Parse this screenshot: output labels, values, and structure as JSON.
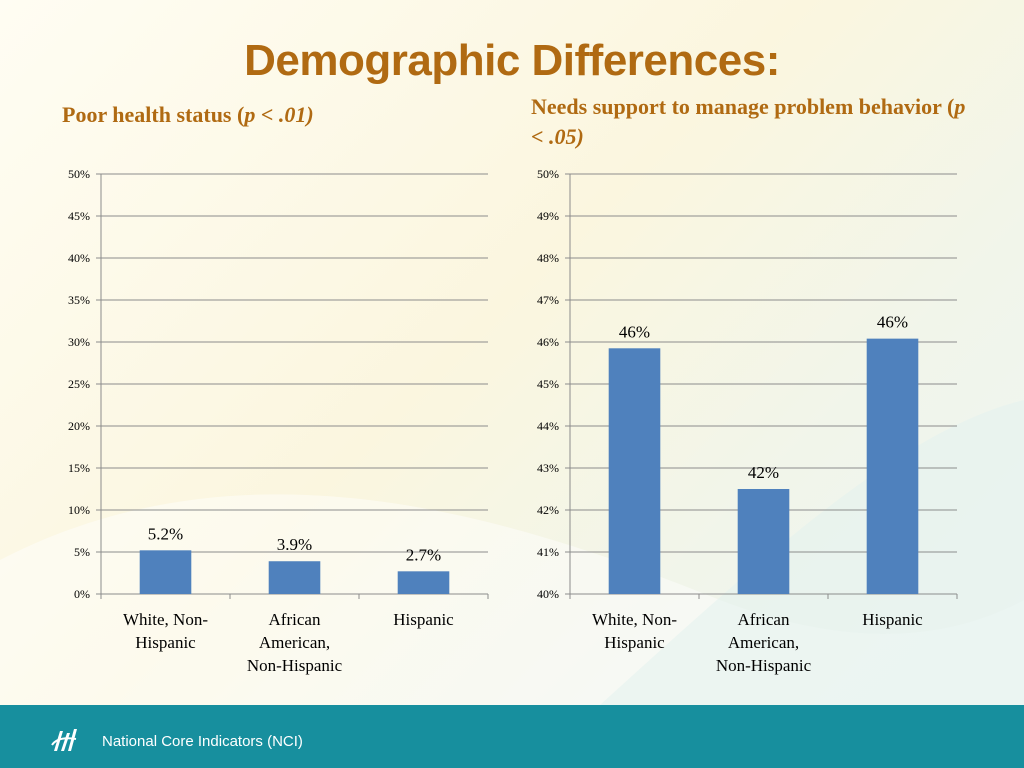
{
  "page": {
    "title": "Demographic Differences:",
    "footer_text": "National Core Indicators (NCI)",
    "colors": {
      "title": "#b06a12",
      "bar": "#4f81bd",
      "footer": "#178f9e"
    },
    "icons": [
      "nci-logo-icon"
    ]
  },
  "chart_data": [
    {
      "type": "bar",
      "title_main": "Poor health status (",
      "title_italic": "p < .01)",
      "categories": [
        [
          "White, Non-",
          "Hispanic"
        ],
        [
          "African",
          "American,",
          "Non-Hispanic"
        ],
        [
          "Hispanic"
        ]
      ],
      "values": [
        5.2,
        3.9,
        2.7
      ],
      "data_labels": [
        "5.2%",
        "3.9%",
        "2.7%"
      ],
      "ylim": [
        0,
        50
      ],
      "yticks": [
        "0%",
        "5%",
        "10%",
        "15%",
        "20%",
        "25%",
        "30%",
        "35%",
        "40%",
        "45%",
        "50%"
      ],
      "grid": true,
      "legend": "none"
    },
    {
      "type": "bar",
      "title_main": "Needs support to manage problem behavior (",
      "title_italic": "p < .05)",
      "categories": [
        [
          "White, Non-",
          "Hispanic"
        ],
        [
          "African",
          "American,",
          "Non-Hispanic"
        ],
        [
          "Hispanic"
        ]
      ],
      "values": [
        45.85,
        42.5,
        46.08
      ],
      "data_labels": [
        "46%",
        "42%",
        "46%"
      ],
      "ylim": [
        40,
        50
      ],
      "yticks": [
        "40%",
        "41%",
        "42%",
        "43%",
        "44%",
        "45%",
        "46%",
        "47%",
        "48%",
        "49%",
        "50%"
      ],
      "grid": true,
      "legend": "none"
    }
  ]
}
